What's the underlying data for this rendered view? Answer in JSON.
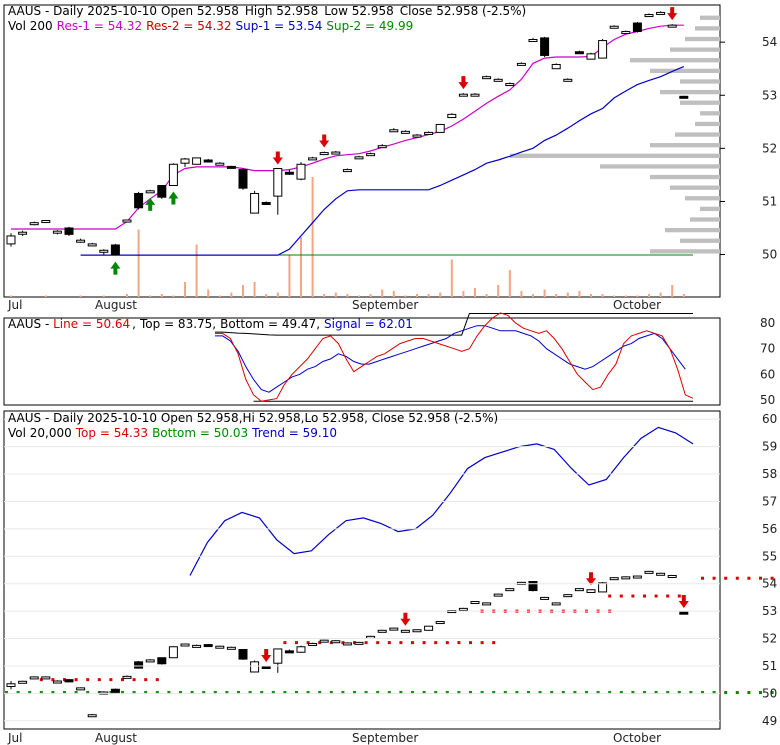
{
  "colors": {
    "up": "#ffffff",
    "down": "#000000",
    "resistance": "#cc00cc",
    "support": "#0000cc",
    "baseline_green": "#008000",
    "volume": "#f4a582",
    "volume_profile": "#bfbfbf",
    "arrow_up": "#008800",
    "arrow_down": "#dd0000",
    "line_red": "#dd0000",
    "line_blue": "#0000cc",
    "dots_red": "#dd0000",
    "dots_green": "#008800"
  },
  "panel1": {
    "header": {
      "symbol": "AAUS",
      "sep": " - ",
      "desc": "Daily 2025-10-10",
      "open": "Open 52.958",
      "high": "High 52.958",
      "low": "Low 52.958",
      "close": "Close 52.958 (-2.5%)",
      "vol": "Vol 200",
      "res1": "Res-1 = 54.32",
      "res2": "Res-2 = 54.32",
      "sup1": "Sup-1 = 53.54",
      "sup2": "Sup-2 = 49.99"
    }
  },
  "panel2": {
    "header": {
      "symbol": "AAUS",
      "sep": " - ",
      "line": "Line = 50.64",
      "top": "Top = 83.75",
      "bottom": "Bottom = 49.47",
      "signal": "Signal = 62.01"
    }
  },
  "panel3": {
    "header": {
      "line1": "AAUS - Daily 2025-10-10 Open 52.958,Hi 52.958,Lo 52.958, Close 52.958 (-2.5%)",
      "vol": "Vol 20,000",
      "top": "Top = 54.33",
      "bottom": "Bottom = 50.03",
      "trend": "Trend = 59.10"
    }
  },
  "x_labels_top": [
    "Jul",
    "August",
    "September",
    "October"
  ],
  "x_labels_bottom": [
    "Jul",
    "August",
    "September",
    "October"
  ],
  "chart_data": [
    {
      "type": "candlestick",
      "ylim": [
        49.2,
        54.7
      ],
      "y_ticks": [
        50,
        51,
        52,
        53,
        54
      ],
      "ohlc": [
        [
          50.2,
          50.4,
          50.15,
          50.35
        ],
        [
          50.4,
          50.45,
          50.35,
          50.42
        ],
        [
          50.58,
          50.62,
          50.55,
          50.6
        ],
        [
          50.62,
          50.65,
          50.6,
          50.64
        ],
        [
          50.42,
          50.46,
          50.38,
          50.44
        ],
        [
          50.5,
          50.52,
          50.35,
          50.38
        ],
        [
          50.25,
          50.3,
          50.22,
          50.27
        ],
        [
          50.2,
          50.22,
          50.18,
          50.2
        ],
        [
          50.05,
          50.1,
          50.0,
          50.08
        ],
        [
          50.18,
          50.2,
          49.98,
          50.0
        ],
        [
          50.62,
          50.66,
          50.6,
          50.65
        ],
        [
          51.15,
          51.18,
          50.85,
          50.88
        ],
        [
          51.2,
          51.22,
          51.18,
          51.2
        ],
        [
          51.3,
          51.3,
          51.05,
          51.08
        ],
        [
          51.3,
          51.72,
          51.3,
          51.7
        ],
        [
          51.72,
          51.82,
          51.65,
          51.8
        ],
        [
          51.7,
          51.82,
          51.7,
          51.82
        ],
        [
          51.78,
          51.8,
          51.75,
          51.77
        ],
        [
          51.72,
          51.74,
          51.7,
          51.72
        ],
        [
          51.66,
          51.67,
          51.64,
          51.65
        ],
        [
          51.6,
          51.62,
          51.22,
          51.25
        ],
        [
          50.78,
          51.2,
          50.78,
          51.15
        ],
        [
          50.98,
          51.0,
          50.95,
          50.97
        ],
        [
          51.1,
          51.62,
          50.75,
          51.62
        ],
        [
          51.55,
          51.6,
          51.5,
          51.52
        ],
        [
          51.42,
          51.74,
          51.4,
          51.7
        ],
        [
          51.8,
          51.84,
          51.78,
          51.82
        ],
        [
          51.92,
          51.94,
          51.9,
          51.92
        ],
        [
          51.92,
          51.95,
          51.9,
          51.93
        ],
        [
          51.6,
          51.62,
          51.58,
          51.6
        ],
        [
          51.84,
          51.86,
          51.82,
          51.84
        ],
        [
          51.9,
          51.92,
          51.88,
          51.9
        ],
        [
          52.05,
          52.08,
          52.02,
          52.05
        ],
        [
          52.35,
          52.38,
          52.33,
          52.35
        ],
        [
          52.32,
          52.34,
          52.3,
          52.32
        ],
        [
          52.25,
          52.27,
          52.23,
          52.25
        ],
        [
          52.3,
          52.32,
          52.28,
          52.3
        ],
        [
          52.3,
          52.46,
          52.3,
          52.45
        ],
        [
          52.58,
          52.66,
          52.58,
          52.64
        ],
        [
          53.02,
          53.04,
          53.0,
          53.02
        ],
        [
          53.02,
          53.04,
          53.0,
          53.02
        ],
        [
          53.35,
          53.37,
          53.33,
          53.35
        ],
        [
          53.3,
          53.32,
          53.28,
          53.3
        ],
        [
          53.22,
          53.24,
          53.2,
          53.22
        ],
        [
          53.6,
          53.62,
          53.58,
          53.6
        ],
        [
          54.05,
          54.08,
          54.02,
          54.05
        ],
        [
          54.08,
          54.1,
          53.72,
          53.75
        ],
        [
          53.5,
          53.6,
          53.5,
          53.58
        ],
        [
          53.3,
          53.32,
          53.28,
          53.3
        ],
        [
          53.82,
          53.84,
          53.78,
          53.8
        ],
        [
          53.68,
          53.8,
          53.68,
          53.78
        ],
        [
          53.7,
          54.06,
          53.7,
          54.03
        ],
        [
          54.3,
          54.32,
          54.28,
          54.3
        ],
        [
          54.2,
          54.22,
          54.18,
          54.2
        ],
        [
          54.36,
          54.38,
          54.18,
          54.2
        ],
        [
          54.52,
          54.54,
          54.5,
          54.52
        ],
        [
          54.56,
          54.58,
          54.54,
          54.56
        ],
        [
          54.32,
          54.34,
          54.3,
          54.32
        ],
        [
          52.98,
          52.99,
          52.95,
          52.958
        ]
      ],
      "resistance": [
        50.48,
        50.48,
        50.48,
        50.48,
        50.48,
        50.48,
        50.48,
        50.48,
        50.48,
        50.48,
        50.62,
        50.88,
        51.05,
        51.2,
        51.5,
        51.62,
        51.65,
        51.65,
        51.65,
        51.65,
        51.62,
        51.58,
        51.58,
        51.58,
        51.6,
        51.65,
        51.72,
        51.8,
        51.86,
        51.88,
        51.9,
        51.95,
        52.02,
        52.08,
        52.15,
        52.2,
        52.26,
        52.32,
        52.42,
        52.55,
        52.7,
        52.85,
        52.98,
        53.1,
        53.3,
        53.6,
        53.7,
        53.72,
        53.72,
        53.72,
        53.73,
        53.9,
        54.05,
        54.15,
        54.2,
        54.26,
        54.3,
        54.32,
        54.32
      ],
      "support": [
        null,
        null,
        null,
        null,
        null,
        null,
        49.99,
        49.99,
        49.99,
        49.99,
        49.99,
        49.99,
        49.99,
        49.99,
        49.99,
        49.99,
        49.99,
        49.99,
        49.99,
        49.99,
        49.99,
        49.99,
        49.99,
        49.99,
        50.1,
        50.35,
        50.6,
        50.85,
        51.05,
        51.2,
        51.22,
        51.22,
        51.22,
        51.22,
        51.22,
        51.22,
        51.22,
        51.3,
        51.4,
        51.5,
        51.6,
        51.72,
        51.78,
        51.85,
        51.93,
        52.0,
        52.15,
        52.25,
        52.38,
        52.52,
        52.65,
        52.75,
        52.95,
        53.08,
        53.2,
        53.28,
        53.35,
        53.45,
        53.54
      ],
      "baseline": 49.99,
      "volume": [
        1,
        0,
        0,
        1,
        0,
        0,
        1,
        0,
        1,
        0,
        2,
        45,
        1,
        2,
        1,
        10,
        35,
        5,
        1,
        3,
        8,
        10,
        2,
        3,
        28,
        40,
        80,
        2,
        3,
        2,
        1,
        2,
        5,
        4,
        1,
        2,
        2,
        3,
        25,
        4,
        6,
        2,
        8,
        18,
        4,
        2,
        5,
        2,
        3,
        4,
        2,
        2,
        1,
        1,
        1,
        2,
        3,
        8,
        2
      ],
      "arrows_up": [
        9,
        12,
        14
      ],
      "arrows_down": [
        23,
        27,
        39,
        57
      ]
    },
    {
      "type": "line",
      "ylim": [
        48,
        82
      ],
      "y_ticks": [
        50,
        60,
        70,
        80
      ],
      "series": [
        {
          "values": [
            76,
            76,
            74,
            68,
            58,
            52,
            49.5,
            50,
            50.5,
            56,
            60,
            63,
            66,
            70,
            74,
            75,
            72,
            66,
            61,
            63,
            65,
            67,
            68,
            70,
            72,
            73,
            74,
            74,
            73,
            72,
            71,
            70,
            69,
            70,
            75,
            79,
            82,
            84,
            83,
            80,
            78,
            77,
            76,
            77,
            74,
            70,
            65,
            60,
            57,
            54,
            55,
            60,
            64,
            72,
            75,
            76,
            77,
            76,
            75,
            70,
            62,
            52,
            50.6
          ]
        },
        {
          "values": [
            75,
            75,
            73,
            69,
            63,
            58,
            54,
            53,
            55,
            57,
            59,
            60,
            62,
            63,
            65,
            66,
            68,
            67,
            65,
            64,
            64,
            65,
            66,
            67,
            68,
            69,
            70,
            71,
            72,
            73,
            74,
            76,
            77,
            78,
            79,
            79,
            78,
            77,
            77,
            77,
            76,
            75,
            73,
            70,
            68,
            66,
            64,
            63,
            62,
            63,
            65,
            67,
            69,
            71,
            72,
            74,
            75,
            76,
            74,
            70,
            66,
            62
          ]
        },
        {
          "values": [
            76.5,
            76.5,
            76.3,
            76.1,
            76.0,
            75.8,
            75.6,
            75.4,
            75.3,
            75.3,
            75.3,
            75.3,
            75.3,
            75.3,
            75.3,
            75.3,
            75.3,
            75.3,
            75.3,
            75.3,
            75.3,
            75.3,
            75.3,
            75.3,
            75.3,
            75.3,
            75.3,
            75.3,
            75.3,
            75.3,
            75.3,
            75.3,
            75.3,
            83.75,
            83.75,
            83.75,
            83.75,
            83.75,
            83.75,
            83.75,
            83.75,
            83.75,
            83.75,
            83.75,
            83.75,
            83.75,
            83.75,
            83.75,
            83.75,
            83.75,
            83.75,
            83.75,
            83.75,
            83.75,
            83.75,
            83.75,
            83.75,
            83.75,
            83.75,
            83.75,
            83.75,
            83.75,
            83.75
          ]
        },
        {
          "values": [
            49.47,
            49.47
          ]
        }
      ]
    },
    {
      "type": "candlestick",
      "ylim": [
        48.7,
        60.3
      ],
      "y_ticks": [
        49,
        50,
        51,
        52,
        53,
        54,
        55,
        56,
        57,
        58,
        59,
        60
      ],
      "trend": [
        54.3,
        55.5,
        56.3,
        56.6,
        56.4,
        55.6,
        55.1,
        55.2,
        55.8,
        56.3,
        56.4,
        56.2,
        55.9,
        56.0,
        56.5,
        57.3,
        58.2,
        58.6,
        58.8,
        59.0,
        59.1,
        58.9,
        58.2,
        57.6,
        57.8,
        58.6,
        59.3,
        59.7,
        59.5,
        59.1
      ],
      "top_dots": [
        [
          3,
          13,
          50.5
        ],
        [
          24,
          42,
          51.85
        ],
        [
          41,
          52,
          53.0
        ],
        [
          52,
          58,
          53.55
        ],
        [
          60,
          69,
          54.2
        ]
      ],
      "bottom_dots": [
        [
          0,
          69,
          50.03
        ]
      ],
      "ohlc": [
        [
          50.25,
          50.45,
          50.15,
          50.35
        ],
        [
          50.42,
          50.46,
          50.38,
          50.44
        ],
        [
          50.58,
          50.62,
          50.55,
          50.6
        ],
        [
          50.6,
          50.62,
          50.58,
          50.6
        ],
        [
          50.45,
          50.48,
          50.42,
          50.45
        ],
        [
          50.5,
          50.52,
          50.4,
          50.42
        ],
        [
          50.2,
          50.22,
          50.18,
          50.2
        ],
        [
          49.2,
          49.25,
          49.18,
          49.22
        ],
        [
          50.05,
          50.08,
          50.02,
          50.05
        ],
        [
          50.15,
          50.18,
          49.98,
          50.0
        ],
        [
          50.62,
          50.65,
          50.6,
          50.62
        ],
        [
          51.15,
          51.18,
          50.9,
          50.92
        ],
        [
          51.22,
          51.25,
          51.2,
          51.22
        ],
        [
          51.3,
          51.3,
          51.05,
          51.08
        ],
        [
          51.3,
          51.72,
          51.3,
          51.7
        ],
        [
          51.8,
          51.82,
          51.78,
          51.8
        ],
        [
          51.75,
          51.78,
          51.72,
          51.75
        ],
        [
          51.78,
          51.8,
          51.75,
          51.77
        ],
        [
          51.72,
          51.74,
          51.7,
          51.72
        ],
        [
          51.68,
          51.7,
          51.66,
          51.68
        ],
        [
          51.6,
          51.62,
          51.22,
          51.25
        ],
        [
          50.78,
          51.2,
          50.78,
          51.15
        ],
        [
          50.98,
          51.0,
          50.95,
          50.97
        ],
        [
          51.1,
          51.62,
          50.75,
          51.62
        ],
        [
          51.55,
          51.6,
          51.5,
          51.52
        ],
        [
          51.5,
          51.74,
          51.48,
          51.7
        ],
        [
          51.82,
          51.85,
          51.8,
          51.82
        ],
        [
          51.94,
          51.96,
          51.92,
          51.94
        ],
        [
          51.92,
          51.94,
          51.9,
          51.92
        ],
        [
          51.84,
          51.86,
          51.82,
          51.84
        ],
        [
          51.86,
          51.88,
          51.84,
          51.86
        ],
        [
          52.08,
          52.1,
          52.05,
          52.08
        ],
        [
          52.3,
          52.32,
          52.28,
          52.3
        ],
        [
          52.38,
          52.4,
          52.36,
          52.38
        ],
        [
          52.3,
          52.32,
          52.28,
          52.3
        ],
        [
          52.32,
          52.34,
          52.3,
          52.32
        ],
        [
          52.3,
          52.46,
          52.3,
          52.45
        ],
        [
          52.62,
          52.64,
          52.6,
          52.62
        ],
        [
          53.02,
          53.04,
          53.0,
          53.02
        ],
        [
          53.1,
          53.12,
          53.08,
          53.1
        ],
        [
          53.35,
          53.37,
          53.33,
          53.35
        ],
        [
          53.3,
          53.32,
          53.28,
          53.3
        ],
        [
          53.62,
          53.64,
          53.6,
          53.62
        ],
        [
          53.82,
          53.84,
          53.8,
          53.82
        ],
        [
          54.05,
          54.07,
          54.03,
          54.05
        ],
        [
          54.08,
          54.1,
          53.72,
          53.75
        ],
        [
          53.5,
          53.52,
          53.48,
          53.5
        ],
        [
          53.3,
          53.32,
          53.28,
          53.3
        ],
        [
          53.6,
          53.62,
          53.58,
          53.6
        ],
        [
          53.82,
          53.84,
          53.8,
          53.82
        ],
        [
          53.68,
          53.8,
          53.68,
          53.78
        ],
        [
          53.7,
          54.06,
          53.7,
          54.03
        ],
        [
          54.22,
          54.24,
          54.2,
          54.22
        ],
        [
          54.25,
          54.27,
          54.23,
          54.25
        ],
        [
          54.28,
          54.3,
          54.26,
          54.28
        ],
        [
          54.45,
          54.47,
          54.43,
          54.45
        ],
        [
          54.38,
          54.4,
          54.36,
          54.38
        ],
        [
          54.3,
          54.32,
          54.28,
          54.3
        ],
        [
          52.96,
          52.97,
          52.95,
          52.958
        ]
      ],
      "arrows_down": [
        22,
        34,
        50,
        62
      ]
    }
  ]
}
